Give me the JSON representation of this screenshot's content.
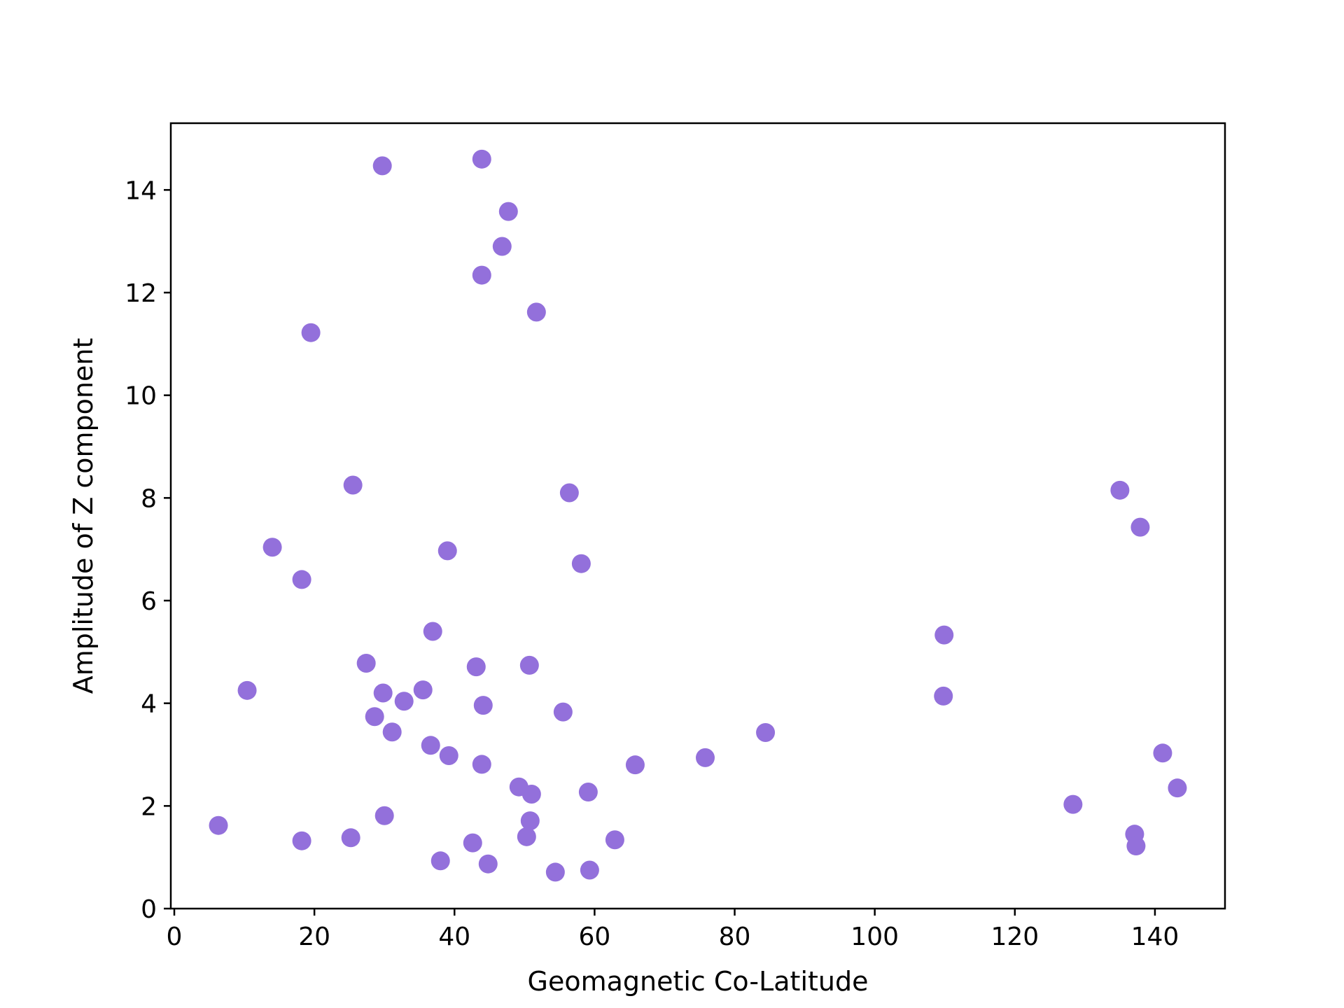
{
  "chart_data": {
    "type": "scatter",
    "title": "",
    "xlabel": "Geomagnetic Co-Latitude",
    "ylabel": "Amplitude of Z component",
    "xlim": [
      -0.5,
      150
    ],
    "ylim": [
      0,
      15.3
    ],
    "xticks": [
      0,
      20,
      40,
      60,
      80,
      100,
      120,
      140
    ],
    "yticks": [
      0,
      2,
      4,
      6,
      8,
      10,
      12,
      14
    ],
    "grid": false,
    "legend": "none",
    "marker_color": "#9370DB",
    "points": [
      [
        29.7,
        14.47
      ],
      [
        43.9,
        14.6
      ],
      [
        47.7,
        13.58
      ],
      [
        46.8,
        12.9
      ],
      [
        43.9,
        12.34
      ],
      [
        51.7,
        11.62
      ],
      [
        19.5,
        11.22
      ],
      [
        25.5,
        8.25
      ],
      [
        56.4,
        8.1
      ],
      [
        14.0,
        7.04
      ],
      [
        39.0,
        6.97
      ],
      [
        18.2,
        6.41
      ],
      [
        58.1,
        6.72
      ],
      [
        36.9,
        5.4
      ],
      [
        27.4,
        4.78
      ],
      [
        43.1,
        4.71
      ],
      [
        50.7,
        4.74
      ],
      [
        10.4,
        4.25
      ],
      [
        29.8,
        4.2
      ],
      [
        35.5,
        4.26
      ],
      [
        32.8,
        4.04
      ],
      [
        44.1,
        3.96
      ],
      [
        28.6,
        3.74
      ],
      [
        55.5,
        3.83
      ],
      [
        31.1,
        3.44
      ],
      [
        36.6,
        3.18
      ],
      [
        39.2,
        2.98
      ],
      [
        43.9,
        2.81
      ],
      [
        65.8,
        2.8
      ],
      [
        75.8,
        2.94
      ],
      [
        84.4,
        3.43
      ],
      [
        49.2,
        2.37
      ],
      [
        51.0,
        2.23
      ],
      [
        59.1,
        2.27
      ],
      [
        6.3,
        1.62
      ],
      [
        30.0,
        1.81
      ],
      [
        50.8,
        1.71
      ],
      [
        18.2,
        1.32
      ],
      [
        25.2,
        1.38
      ],
      [
        42.6,
        1.28
      ],
      [
        50.3,
        1.4
      ],
      [
        62.9,
        1.34
      ],
      [
        38.0,
        0.93
      ],
      [
        44.8,
        0.87
      ],
      [
        54.4,
        0.71
      ],
      [
        59.3,
        0.75
      ],
      [
        109.9,
        5.33
      ],
      [
        109.8,
        4.14
      ],
      [
        135.0,
        8.15
      ],
      [
        137.9,
        7.43
      ],
      [
        141.1,
        3.03
      ],
      [
        143.2,
        2.35
      ],
      [
        128.3,
        2.03
      ],
      [
        137.1,
        1.45
      ],
      [
        137.3,
        1.22
      ]
    ]
  }
}
